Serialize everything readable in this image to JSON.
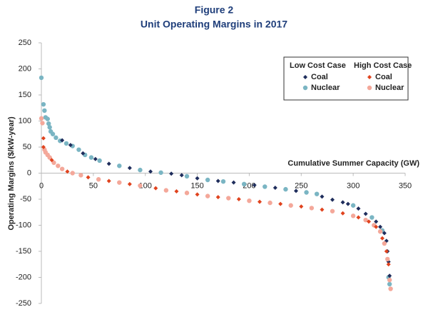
{
  "chart_data": {
    "type": "scatter",
    "title": "Figure 2",
    "subtitle": "Unit Operating Margins in 2017",
    "x_label": "Cumulative Summer Capacity (GW)",
    "y_label": "Operating Margins ($/kW-year)",
    "xlim": [
      0,
      350
    ],
    "xticks": [
      0,
      50,
      100,
      150,
      200,
      250,
      300,
      350
    ],
    "ylim": [
      -250,
      250
    ],
    "yticks": [
      -250,
      -200,
      -150,
      -100,
      -50,
      0,
      50,
      100,
      150,
      200,
      250
    ],
    "grid": false,
    "legend_position": "upper right",
    "legend_groups": [
      "Low Cost Case",
      "High Cost Case"
    ],
    "series": [
      {
        "name": "Coal",
        "color": "#1f2d5c",
        "marker": "diamond",
        "x": [
          20,
          28,
          40,
          52,
          65,
          85,
          105,
          125,
          135,
          150,
          170,
          185,
          205,
          225,
          245,
          270,
          280,
          290,
          295,
          305,
          312,
          322,
          326,
          330,
          332,
          333,
          334,
          335
        ],
        "values": [
          63,
          54,
          38,
          27,
          18,
          10,
          3,
          -1,
          -4,
          -10,
          -15,
          -18,
          -23,
          -28,
          -34,
          -45,
          -51,
          -56,
          -59,
          -68,
          -78,
          -93,
          -103,
          -115,
          -130,
          -150,
          -170,
          -197
        ]
      },
      {
        "name": "Nuclear",
        "color": "#7ab5c3",
        "marker": "circle",
        "x": [
          0,
          2,
          3,
          4,
          6,
          7,
          8,
          9,
          11,
          14,
          18,
          24,
          30,
          36,
          42,
          48,
          56,
          75,
          95,
          115,
          140,
          160,
          175,
          195,
          215,
          235,
          255,
          265,
          300,
          318,
          328,
          334,
          335
        ],
        "values": [
          183,
          132,
          120,
          107,
          104,
          95,
          88,
          80,
          75,
          68,
          62,
          57,
          52,
          45,
          35,
          30,
          24,
          14,
          6,
          1,
          -6,
          -13,
          -16,
          -21,
          -26,
          -31,
          -37,
          -40,
          -62,
          -85,
          -110,
          -200,
          -213
        ]
      },
      {
        "name": "Coal",
        "color": "#e0431e",
        "marker": "diamond",
        "x": [
          2,
          2,
          10,
          25,
          45,
          65,
          85,
          110,
          130,
          150,
          170,
          190,
          210,
          230,
          250,
          270,
          290,
          305,
          315,
          322,
          328,
          332,
          334
        ],
        "values": [
          67,
          50,
          25,
          3,
          -8,
          -15,
          -21,
          -29,
          -35,
          -41,
          -46,
          -50,
          -55,
          -59,
          -64,
          -70,
          -77,
          -85,
          -93,
          -103,
          -125,
          -150,
          -175
        ]
      },
      {
        "name": "Nuclear",
        "color": "#f4a89a",
        "marker": "circle",
        "x": [
          0,
          1,
          3,
          4,
          6,
          8,
          12,
          16,
          20,
          30,
          38,
          55,
          75,
          95,
          120,
          140,
          160,
          180,
          200,
          220,
          240,
          260,
          280,
          300,
          312,
          320,
          326,
          330,
          333,
          335,
          336
        ],
        "values": [
          105,
          96,
          45,
          40,
          35,
          30,
          20,
          14,
          8,
          0,
          -4,
          -12,
          -18,
          -24,
          -33,
          -38,
          -44,
          -48,
          -53,
          -57,
          -62,
          -67,
          -73,
          -82,
          -90,
          -100,
          -112,
          -135,
          -165,
          -205,
          -222
        ]
      }
    ]
  }
}
